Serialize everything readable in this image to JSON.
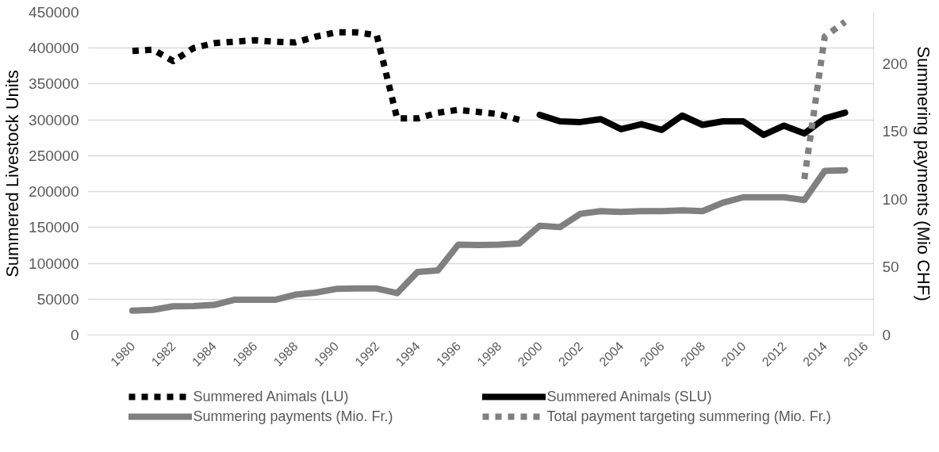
{
  "chart_data": {
    "type": "line",
    "ylabel": "Summered Livestock Units",
    "y2label": "Summering payments (Mio CHF)",
    "xlim": [
      1977.8,
      2016.4
    ],
    "xticks": [
      1980,
      1982,
      1984,
      1986,
      1988,
      1990,
      1992,
      1994,
      1996,
      1998,
      2000,
      2002,
      2004,
      2006,
      2008,
      2010,
      2012,
      2014,
      2016
    ],
    "ylim": [
      0,
      450000
    ],
    "yticks": [
      0,
      50000,
      100000,
      150000,
      200000,
      250000,
      300000,
      350000,
      400000,
      450000
    ],
    "y2lim": [
      0,
      238
    ],
    "y2ticks": [
      0,
      50,
      100,
      150,
      200
    ],
    "grid": "y",
    "legend": "bottom",
    "series": [
      {
        "name": "Summered Animals (LU)",
        "color": "#000000",
        "line_style": "dotted",
        "x": [
          1980,
          1981,
          1982,
          1983,
          1984,
          1985,
          1986,
          1987,
          1988,
          1989,
          1990,
          1991,
          1992,
          1993,
          1994,
          1995,
          1996,
          1997,
          1998,
          1999
        ],
        "values": [
          396000,
          398000,
          382000,
          400000,
          407000,
          409000,
          411000,
          409000,
          408000,
          416000,
          422000,
          422000,
          418000,
          302000,
          302000,
          310000,
          314000,
          311000,
          308000,
          300000
        ]
      },
      {
        "name": "Summered Animals (SLU)",
        "color": "#000000",
        "line_style": "solid",
        "x": [
          2000,
          2001,
          2002,
          2003,
          2004,
          2005,
          2006,
          2007,
          2008,
          2009,
          2010,
          2011,
          2012,
          2013,
          2014,
          2015
        ],
        "values": [
          307000,
          298000,
          297000,
          301000,
          287000,
          294000,
          286000,
          306000,
          293000,
          298000,
          298000,
          279000,
          292000,
          281000,
          302000,
          310000
        ]
      },
      {
        "name": "Summering payments (Mio. Fr.)",
        "color": "#808080",
        "line_style": "solid",
        "axis": "y2",
        "x": [
          1980,
          1981,
          1982,
          1983,
          1984,
          1985,
          1986,
          1987,
          1988,
          1989,
          1990,
          1991,
          1992,
          1993,
          1994,
          1995,
          1996,
          1997,
          1998,
          1999,
          2000,
          2001,
          2002,
          2003,
          2004,
          2005,
          2006,
          2007,
          2008,
          2009,
          2010,
          2011,
          2012,
          2013,
          2014,
          2015
        ],
        "values": [
          18.0,
          18.6,
          21.2,
          21.4,
          22.2,
          26.0,
          26.0,
          26.0,
          29.8,
          31.3,
          34.0,
          34.3,
          34.3,
          30.9,
          46.5,
          47.6,
          66.6,
          66.3,
          66.6,
          67.6,
          80.6,
          79.6,
          89.4,
          91.4,
          90.8,
          91.4,
          91.4,
          92.0,
          91.4,
          97.6,
          101.6,
          101.6,
          101.6,
          99.6,
          121.0,
          121.5
        ]
      },
      {
        "name": "Total payment targeting summering (Mio. Fr.)",
        "color": "#808080",
        "line_style": "dotted",
        "axis": "y2",
        "x": [
          2013,
          2014,
          2015
        ],
        "values": [
          115,
          220,
          231
        ]
      }
    ]
  }
}
